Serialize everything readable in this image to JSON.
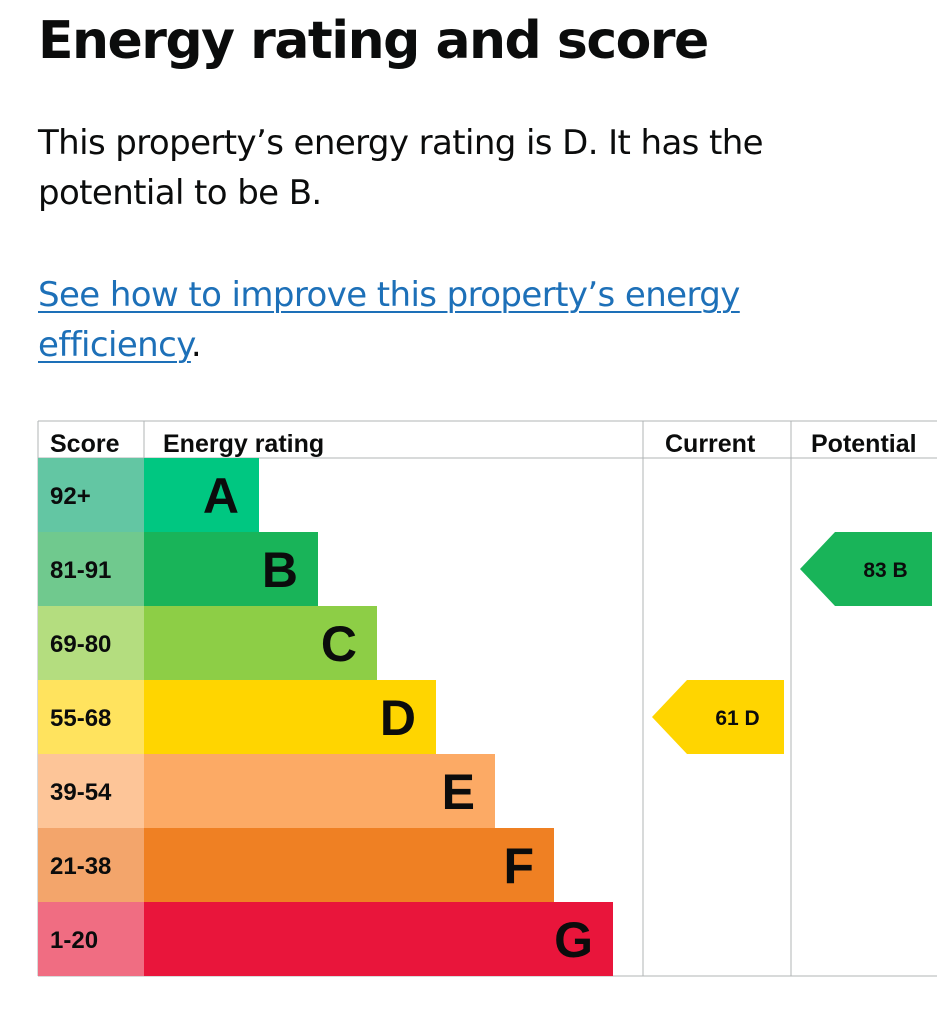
{
  "page": {
    "title": "Energy rating and score",
    "summary": "This property’s energy rating is D. It has the potential to be B.",
    "link_text": "See how to improve this property’s energy efficiency",
    "link_suffix": "."
  },
  "chart_data": {
    "type": "table",
    "headers": {
      "score": "Score",
      "rating": "Energy rating",
      "current": "Current",
      "potential": "Potential"
    },
    "bands": [
      {
        "score": "92+",
        "letter": "A",
        "color": "#00c781",
        "score_bg": "#63c6a3"
      },
      {
        "score": "81-91",
        "letter": "B",
        "color": "#19b459",
        "score_bg": "#70c98e"
      },
      {
        "score": "69-80",
        "letter": "C",
        "color": "#8dce46",
        "score_bg": "#b4dd7f"
      },
      {
        "score": "55-68",
        "letter": "D",
        "color": "#ffd500",
        "score_bg": "#ffe35e"
      },
      {
        "score": "39-54",
        "letter": "E",
        "color": "#fcaa65",
        "score_bg": "#fdc598"
      },
      {
        "score": "21-38",
        "letter": "F",
        "color": "#ef8023",
        "score_bg": "#f3a56b"
      },
      {
        "score": "1-20",
        "letter": "G",
        "color": "#e9153b",
        "score_bg": "#f06d82"
      }
    ],
    "current": {
      "score": 61,
      "letter": "D",
      "label": "61 D",
      "band_index": 3,
      "color": "#ffd500"
    },
    "potential": {
      "score": 83,
      "letter": "B",
      "label": "83 B",
      "band_index": 1,
      "color": "#19b459"
    }
  }
}
